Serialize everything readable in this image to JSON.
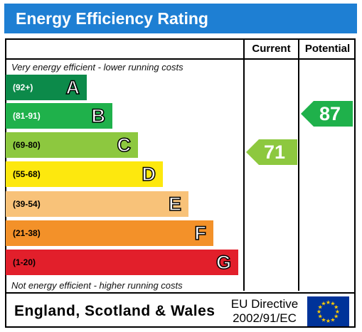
{
  "title": "Energy Efficiency Rating",
  "columns": {
    "current": "Current",
    "potential": "Potential"
  },
  "notes": {
    "top": "Very energy efficient - lower running costs",
    "bottom": "Not energy efficient - higher running costs"
  },
  "bands": [
    {
      "range": "(92+)",
      "letter": "A",
      "color": "#0c8a4a"
    },
    {
      "range": "(81-91)",
      "letter": "B",
      "color": "#1fb14b"
    },
    {
      "range": "(69-80)",
      "letter": "C",
      "color": "#8dc83f"
    },
    {
      "range": "(55-68)",
      "letter": "D",
      "color": "#fde80e"
    },
    {
      "range": "(39-54)",
      "letter": "E",
      "color": "#f8c279"
    },
    {
      "range": "(21-38)",
      "letter": "F",
      "color": "#f39129"
    },
    {
      "range": "(1-20)",
      "letter": "G",
      "color": "#e21f2b"
    }
  ],
  "current": {
    "value": "71",
    "color": "#8dc83f"
  },
  "potential": {
    "value": "87",
    "color": "#1fb14b"
  },
  "footer": {
    "region": "England, Scotland & Wales",
    "directive_line1": "EU Directive",
    "directive_line2": "2002/91/EC"
  }
}
